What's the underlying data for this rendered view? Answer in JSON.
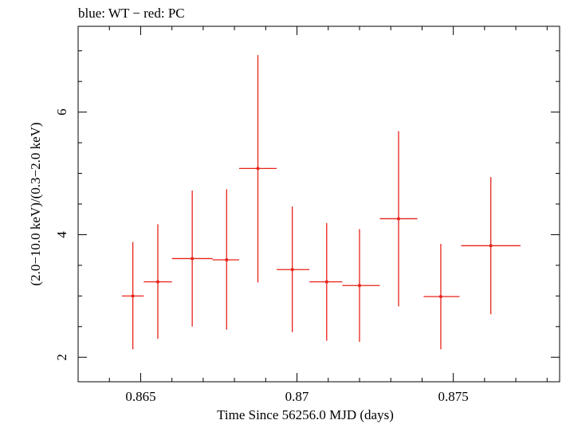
{
  "chart_data": {
    "type": "scatter",
    "title": "blue: WT − red: PC",
    "xlabel": "Time Since 56256.0 MJD (days)",
    "ylabel": "(2.0−10.0 keV)/(0.3−2.0 keV)",
    "xlim": [
      0.863,
      0.8784
    ],
    "ylim": [
      1.6,
      7.4
    ],
    "xticks": [
      {
        "value": 0.865,
        "label": "0.865"
      },
      {
        "value": 0.87,
        "label": "0.87"
      },
      {
        "value": 0.875,
        "label": "0.875"
      }
    ],
    "yticks": [
      {
        "value": 2,
        "label": "2"
      },
      {
        "value": 4,
        "label": "4"
      },
      {
        "value": 6,
        "label": "6"
      }
    ],
    "grid": false,
    "series": [
      {
        "color": "#e8231a",
        "points": [
          {
            "x": 0.86475,
            "xlo": 0.8644,
            "xhi": 0.8651,
            "y": 3.0,
            "ylo": 2.13,
            "yhi": 3.88
          },
          {
            "x": 0.86555,
            "xlo": 0.8651,
            "xhi": 0.866,
            "y": 3.23,
            "ylo": 2.3,
            "yhi": 4.17
          },
          {
            "x": 0.86665,
            "xlo": 0.866,
            "xhi": 0.8673,
            "y": 3.61,
            "ylo": 2.5,
            "yhi": 4.72
          },
          {
            "x": 0.86775,
            "xlo": 0.8673,
            "xhi": 0.86815,
            "y": 3.59,
            "ylo": 2.45,
            "yhi": 4.74
          },
          {
            "x": 0.86875,
            "xlo": 0.86815,
            "xhi": 0.86935,
            "y": 5.08,
            "ylo": 3.22,
            "yhi": 6.93
          },
          {
            "x": 0.86985,
            "xlo": 0.86935,
            "xhi": 0.8704,
            "y": 3.43,
            "ylo": 2.41,
            "yhi": 4.46
          },
          {
            "x": 0.87095,
            "xlo": 0.8704,
            "xhi": 0.87145,
            "y": 3.23,
            "ylo": 2.27,
            "yhi": 4.19
          },
          {
            "x": 0.872,
            "xlo": 0.87145,
            "xhi": 0.87265,
            "y": 3.17,
            "ylo": 2.25,
            "yhi": 4.09
          },
          {
            "x": 0.87325,
            "xlo": 0.87265,
            "xhi": 0.87385,
            "y": 4.26,
            "ylo": 2.83,
            "yhi": 5.69
          },
          {
            "x": 0.8746,
            "xlo": 0.87405,
            "xhi": 0.8752,
            "y": 2.99,
            "ylo": 2.13,
            "yhi": 3.85
          },
          {
            "x": 0.8762,
            "xlo": 0.87525,
            "xhi": 0.87715,
            "y": 3.82,
            "ylo": 2.7,
            "yhi": 4.94
          }
        ]
      }
    ]
  }
}
